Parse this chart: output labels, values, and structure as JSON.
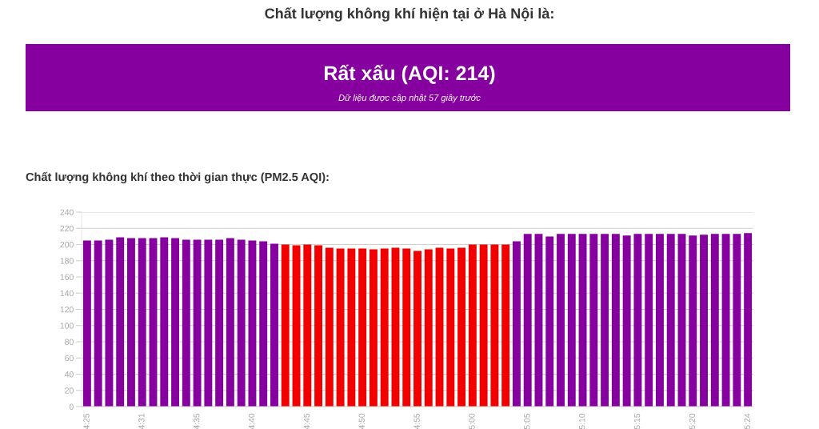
{
  "chart_data": {
    "type": "bar",
    "title": "Chất lượng không khí hiện tại ở Hà Nội là:",
    "subtitle": "Chất lượng không khí theo thời gian thực (PM2.5 AQI):",
    "annotations": [
      "Rất xấu (AQI: 214)",
      "Dữ liệu được cập nhật 57 giây trước"
    ],
    "categories": [
      "4:25",
      null,
      null,
      null,
      null,
      "4:31",
      null,
      null,
      null,
      null,
      "4:35",
      null,
      null,
      null,
      null,
      "4:40",
      null,
      null,
      null,
      null,
      "4:45",
      null,
      null,
      null,
      null,
      "4:50",
      null,
      null,
      null,
      null,
      "4:55",
      null,
      null,
      null,
      null,
      "5:00",
      null,
      null,
      null,
      null,
      "5:05",
      null,
      null,
      null,
      null,
      "5:10",
      null,
      null,
      null,
      null,
      "5:15",
      null,
      null,
      null,
      null,
      "5:20",
      null,
      null,
      null,
      null,
      "5:24"
    ],
    "values": [
      205,
      205,
      206,
      209,
      208,
      208,
      208,
      209,
      208,
      206,
      206,
      206,
      206,
      208,
      206,
      205,
      204,
      201,
      200,
      199,
      200,
      199,
      196,
      195,
      195,
      195,
      194,
      195,
      196,
      195,
      192,
      194,
      196,
      195,
      196,
      200,
      200,
      200,
      200,
      204,
      213,
      213,
      210,
      213,
      213,
      213,
      213,
      213,
      213,
      211,
      213,
      213,
      213,
      213,
      213,
      211,
      212,
      213,
      213,
      213,
      214
    ],
    "colors": [
      "#85009f",
      "#85009f",
      "#85009f",
      "#85009f",
      "#85009f",
      "#85009f",
      "#85009f",
      "#85009f",
      "#85009f",
      "#85009f",
      "#85009f",
      "#85009f",
      "#85009f",
      "#85009f",
      "#85009f",
      "#85009f",
      "#85009f",
      "#85009f",
      "#f20000",
      "#f20000",
      "#f20000",
      "#f20000",
      "#f20000",
      "#f20000",
      "#f20000",
      "#f20000",
      "#f20000",
      "#f20000",
      "#f20000",
      "#f20000",
      "#f20000",
      "#f20000",
      "#f20000",
      "#f20000",
      "#f20000",
      "#f20000",
      "#f20000",
      "#f20000",
      "#f20000",
      "#85009f",
      "#85009f",
      "#85009f",
      "#85009f",
      "#85009f",
      "#85009f",
      "#85009f",
      "#85009f",
      "#85009f",
      "#85009f",
      "#85009f",
      "#85009f",
      "#85009f",
      "#85009f",
      "#85009f",
      "#85009f",
      "#85009f",
      "#85009f",
      "#85009f",
      "#85009f",
      "#85009f",
      "#85009f"
    ],
    "ylim": [
      0,
      240
    ],
    "yticks": [
      0,
      20,
      40,
      60,
      80,
      100,
      120,
      140,
      160,
      180,
      200,
      220,
      240
    ],
    "grid": "y"
  }
}
